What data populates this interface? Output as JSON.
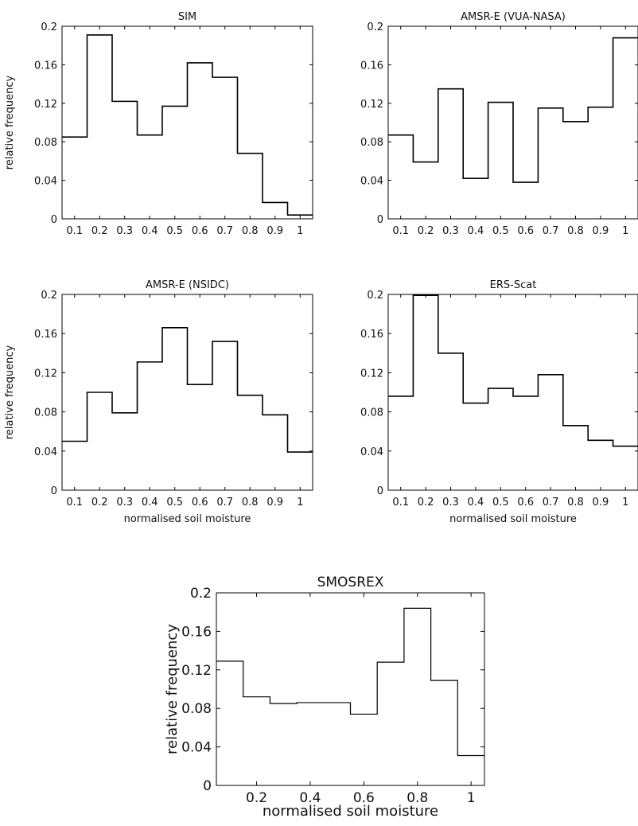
{
  "chart_data": [
    {
      "id": "sim",
      "type": "histogram",
      "title": "SIM",
      "xlabel": "",
      "ylabel": "relative frequency",
      "xlim": [
        0.05,
        1.05
      ],
      "ylim": [
        0,
        0.2
      ],
      "xticks": [
        0.1,
        0.2,
        0.3,
        0.4,
        0.5,
        0.6,
        0.7,
        0.8,
        0.9,
        1
      ],
      "xtick_labels": [
        "0.1",
        "0.2",
        "0.3",
        "0.4",
        "0.5",
        "0.6",
        "0.7",
        "0.8",
        "0.9",
        "1"
      ],
      "yticks": [
        0,
        0.04,
        0.08,
        0.12,
        0.16,
        0.2
      ],
      "ytick_labels": [
        "0",
        "0.04",
        "0.08",
        "0.12",
        "0.16",
        "0.2"
      ],
      "bin_centers": [
        0.1,
        0.2,
        0.3,
        0.4,
        0.5,
        0.6,
        0.7,
        0.8,
        0.9,
        1.0
      ],
      "values": [
        0.085,
        0.191,
        0.122,
        0.087,
        0.117,
        0.162,
        0.147,
        0.068,
        0.017,
        0.004
      ]
    },
    {
      "id": "amsre-vua",
      "type": "histogram",
      "title": "AMSR-E (VUA-NASA)",
      "xlabel": "",
      "ylabel": "",
      "xlim": [
        0.05,
        1.05
      ],
      "ylim": [
        0,
        0.2
      ],
      "xticks": [
        0.1,
        0.2,
        0.3,
        0.4,
        0.5,
        0.6,
        0.7,
        0.8,
        0.9,
        1
      ],
      "xtick_labels": [
        "0.1",
        "0.2",
        "0.3",
        "0.4",
        "0.5",
        "0.6",
        "0.7",
        "0.8",
        "0.9",
        "1"
      ],
      "yticks": [
        0,
        0.04,
        0.08,
        0.12,
        0.16,
        0.2
      ],
      "ytick_labels": [
        "0",
        "0.04",
        "0.08",
        "0.12",
        "0.16",
        "0.2"
      ],
      "bin_centers": [
        0.1,
        0.2,
        0.3,
        0.4,
        0.5,
        0.6,
        0.7,
        0.8,
        0.9,
        1.0
      ],
      "values": [
        0.087,
        0.059,
        0.135,
        0.042,
        0.121,
        0.038,
        0.115,
        0.101,
        0.116,
        0.188
      ]
    },
    {
      "id": "amsre-nsidc",
      "type": "histogram",
      "title": "AMSR-E (NSIDC)",
      "xlabel": "normalised soil moisture",
      "ylabel": "relative frequency",
      "xlim": [
        0.05,
        1.05
      ],
      "ylim": [
        0,
        0.2
      ],
      "xticks": [
        0.1,
        0.2,
        0.3,
        0.4,
        0.5,
        0.6,
        0.7,
        0.8,
        0.9,
        1
      ],
      "xtick_labels": [
        "0.1",
        "0.2",
        "0.3",
        "0.4",
        "0.5",
        "0.6",
        "0.7",
        "0.8",
        "0.9",
        "1"
      ],
      "yticks": [
        0,
        0.04,
        0.08,
        0.12,
        0.16,
        0.2
      ],
      "ytick_labels": [
        "0",
        "0.04",
        "0.08",
        "0.12",
        "0.16",
        "0.2"
      ],
      "bin_centers": [
        0.1,
        0.2,
        0.3,
        0.4,
        0.5,
        0.6,
        0.7,
        0.8,
        0.9,
        1.0
      ],
      "values": [
        0.05,
        0.1,
        0.079,
        0.131,
        0.166,
        0.108,
        0.152,
        0.097,
        0.077,
        0.039
      ]
    },
    {
      "id": "ers-scat",
      "type": "histogram",
      "title": "ERS-Scat",
      "xlabel": "normalised soil moisture",
      "ylabel": "",
      "xlim": [
        0.05,
        1.05
      ],
      "ylim": [
        0,
        0.2
      ],
      "xticks": [
        0.1,
        0.2,
        0.3,
        0.4,
        0.5,
        0.6,
        0.7,
        0.8,
        0.9,
        1
      ],
      "xtick_labels": [
        "0.1",
        "0.2",
        "0.3",
        "0.4",
        "0.5",
        "0.6",
        "0.7",
        "0.8",
        "0.9",
        "1"
      ],
      "yticks": [
        0,
        0.04,
        0.08,
        0.12,
        0.16,
        0.2
      ],
      "ytick_labels": [
        "0",
        "0.04",
        "0.08",
        "0.12",
        "0.16",
        "0.2"
      ],
      "bin_centers": [
        0.1,
        0.2,
        0.3,
        0.4,
        0.5,
        0.6,
        0.7,
        0.8,
        0.9,
        1.0
      ],
      "values": [
        0.096,
        0.199,
        0.14,
        0.089,
        0.104,
        0.096,
        0.118,
        0.066,
        0.051,
        0.045
      ]
    },
    {
      "id": "smosrex",
      "type": "histogram",
      "title": "SMOSREX",
      "xlabel": "normalised soil moisture",
      "ylabel": "relative frequency",
      "xlim": [
        0.05,
        1.05
      ],
      "ylim": [
        0,
        0.2
      ],
      "xticks": [
        0.2,
        0.4,
        0.6,
        0.8,
        1
      ],
      "xtick_labels": [
        "0.2",
        "0.4",
        "0.6",
        "0.8",
        "1"
      ],
      "yticks": [
        0,
        0.04,
        0.08,
        0.12,
        0.16,
        0.2
      ],
      "ytick_labels": [
        "0",
        "0.04",
        "0.08",
        "0.12",
        "0.16",
        "0.2"
      ],
      "bin_centers": [
        0.1,
        0.2,
        0.3,
        0.4,
        0.5,
        0.6,
        0.7,
        0.8,
        0.9,
        1.0
      ],
      "values": [
        0.129,
        0.092,
        0.085,
        0.086,
        0.086,
        0.074,
        0.128,
        0.184,
        0.109,
        0.031
      ]
    }
  ]
}
